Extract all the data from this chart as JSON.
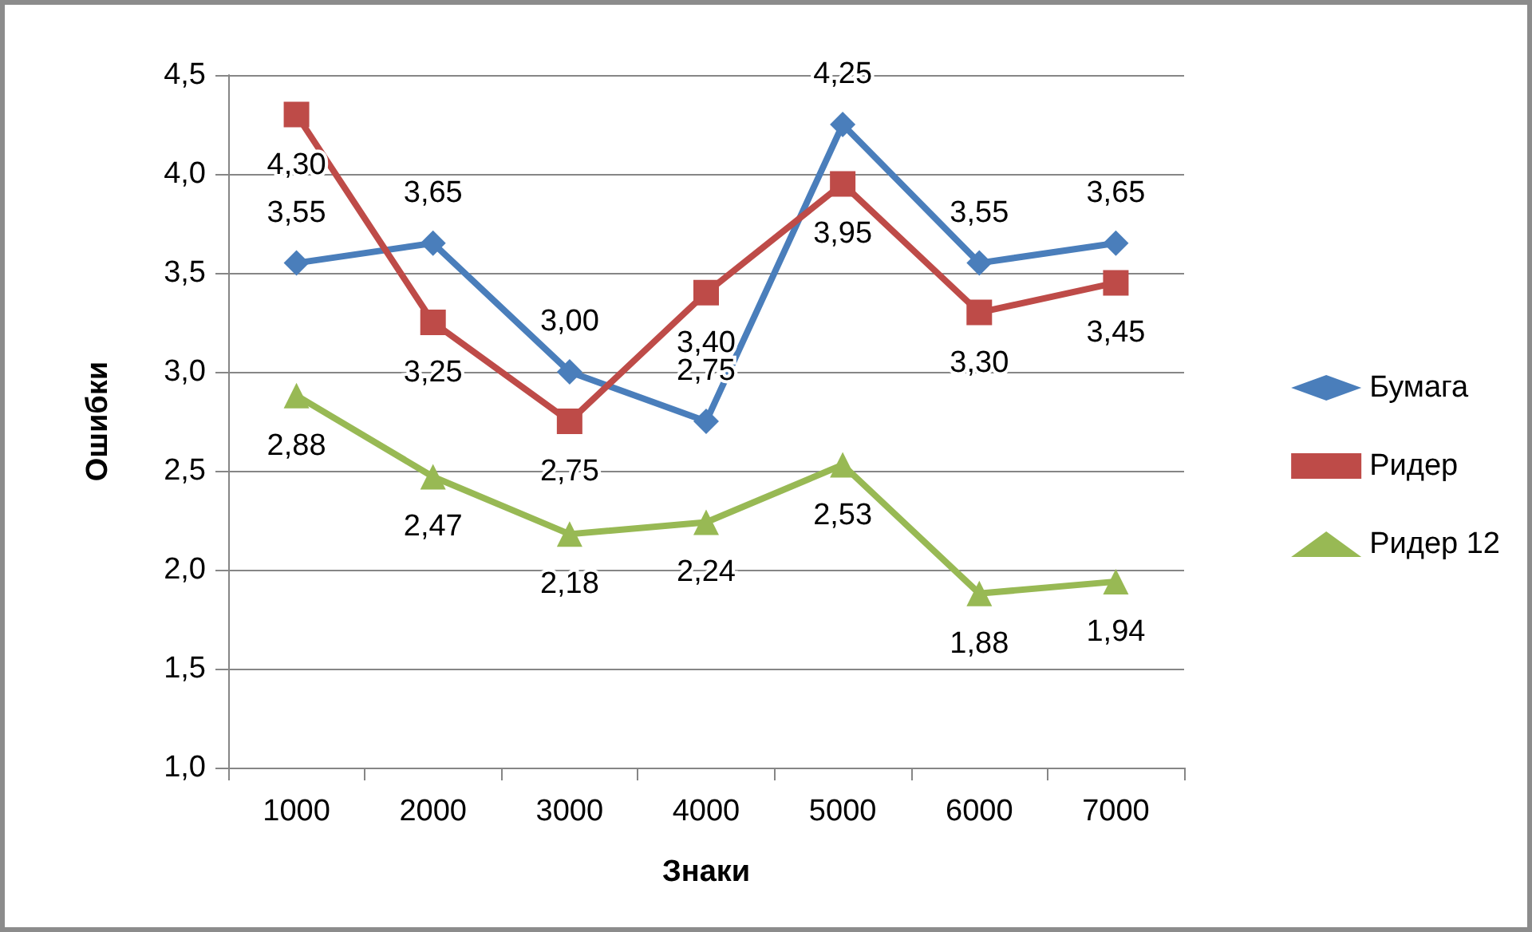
{
  "chart_data": {
    "type": "line",
    "xlabel": "Знаки",
    "ylabel": "Ошибки",
    "categories": [
      "1000",
      "2000",
      "3000",
      "4000",
      "5000",
      "6000",
      "7000"
    ],
    "ylim": [
      1.0,
      4.5
    ],
    "yticks": [
      {
        "value": 1.0,
        "label": "1,0"
      },
      {
        "value": 1.5,
        "label": "1,5"
      },
      {
        "value": 2.0,
        "label": "2,0"
      },
      {
        "value": 2.5,
        "label": "2,5"
      },
      {
        "value": 3.0,
        "label": "3,0"
      },
      {
        "value": 3.5,
        "label": "3,5"
      },
      {
        "value": 4.0,
        "label": "4,0"
      },
      {
        "value": 4.5,
        "label": "4,5"
      }
    ],
    "grid": "y",
    "legend": "right",
    "series": [
      {
        "name": "Бумага",
        "color": "#4a7ebb",
        "marker": "diamond",
        "values": [
          3.55,
          3.65,
          3.0,
          2.75,
          4.25,
          3.55,
          3.65
        ],
        "value_labels": [
          "3,55",
          "3,65",
          "3,00",
          "2,75",
          "4,25",
          "3,55",
          "3,65"
        ]
      },
      {
        "name": "Ридер",
        "color": "#be4b48",
        "marker": "square",
        "values": [
          4.3,
          3.25,
          2.75,
          3.4,
          3.95,
          3.3,
          3.45
        ],
        "value_labels": [
          "4,30",
          "3,25",
          "2,75",
          "3,40",
          "3,95",
          "3,30",
          "3,45"
        ]
      },
      {
        "name": "Ридер 12",
        "color": "#98b954",
        "marker": "triangle",
        "values": [
          2.88,
          2.47,
          2.18,
          2.24,
          2.53,
          1.88,
          1.94
        ],
        "value_labels": [
          "2,88",
          "2,47",
          "2,18",
          "2,24",
          "2,53",
          "1,88",
          "1,94"
        ]
      }
    ]
  }
}
